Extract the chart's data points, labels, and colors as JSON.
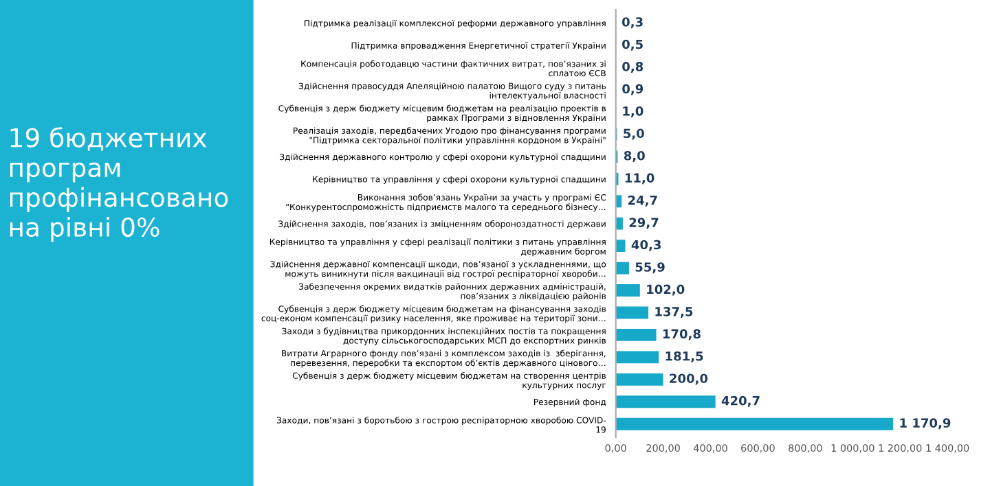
{
  "chart_data": {
    "type": "bar",
    "orientation": "horizontal",
    "title": "19 бюджетних\nпрограм\nпрофінансовано\nна рівні 0%",
    "categories": [
      "Підтримка реалізації комплексної реформи державного управління",
      "Підтримка впровадження Енергетичної стратегії України",
      "Компенсація роботодавцю частини фактичних витрат, пов’язаних зі\nсплатою ЄСВ",
      "Здійснення правосуддя Апеляційною палатою Вищого суду з питань\nінтелектуальної власності",
      "Субвенція з держ бюджету місцевим бюджетам на реалізацію проектів в\nрамках Програми з відновлення України",
      "Реалізація заходів, передбачених Угодою про фінансування програми\n\"Підтримка секторальної політики управління кордоном в Україні\"",
      "Здійснення державного контролю у сфері охорони культурної спадщини",
      "Керівництво та управління у сфері охорони культурної спадщини",
      "Виконання зобов’язань України за участь у програмі ЄС\n\"Конкурентоспроможність підприємств малого та середнього бізнесу…",
      "Здійснення заходів, пов’язаних із зміцненням обороноздатності держави",
      "Керівництво та управління у сфері реалізації політики з питань управління\nдержавним боргом",
      "Здійснення державної компенсації шкоди, пов’язаної з ускладненнями, що\nможуть виникнути після вакцинації від гострої респіраторної хвороби…",
      "Забезпечення окремих видатків районних державних адміністрацій,\nпов’язаних з ліквідацією районів",
      "Субвенція з держ бюджету місцевим бюджетам на фінансування заходів\nсоц-економ компенсації ризику населення, яке проживає на території зони…",
      "Заходи з будівництва прикордонних інспекційних постів та покращення\nдоступу сільськогосподарських МСП до експортних ринків",
      "Витрати Аграрного фонду пов’язані з комплексом заходів із  зберігання,\nперевезення, переробки та експортом об’єктів державного цінового…",
      "Субвенція з держ бюджету місцевим бюджетам на створення центрів\nкультурних послуг",
      "Резервний фонд",
      "Заходи, пов’язані з боротьбою з гострою респіраторною хворобою COVID-\n19"
    ],
    "values": [
      0.3,
      0.5,
      0.8,
      0.9,
      1.0,
      5.0,
      8.0,
      11.0,
      24.7,
      29.7,
      40.3,
      55.9,
      102.0,
      137.5,
      170.8,
      181.5,
      200.0,
      420.7,
      1170.9
    ],
    "value_labels": [
      "0,3",
      "0,5",
      "0,8",
      "0,9",
      "1,0",
      "5,0",
      "8,0",
      "11,0",
      "24,7",
      "29,7",
      "40,3",
      "55,9",
      "102,0",
      "137,5",
      "170,8",
      "181,5",
      "200,0",
      "420,7",
      "1 170,9"
    ],
    "color": "#17a9c9",
    "xlim": [
      0,
      1400
    ],
    "xticks": [
      {
        "value": 0,
        "label": "0,00"
      },
      {
        "value": 200,
        "label": "200,00"
      },
      {
        "value": 400,
        "label": "400,00"
      },
      {
        "value": 600,
        "label": "600,00"
      },
      {
        "value": 800,
        "label": "800,00"
      },
      {
        "value": 1000,
        "label": "1 000,00"
      },
      {
        "value": 1200,
        "label": "1 200,00"
      },
      {
        "value": 1400,
        "label": "1 400,00"
      }
    ],
    "grid": false,
    "legend": false
  }
}
